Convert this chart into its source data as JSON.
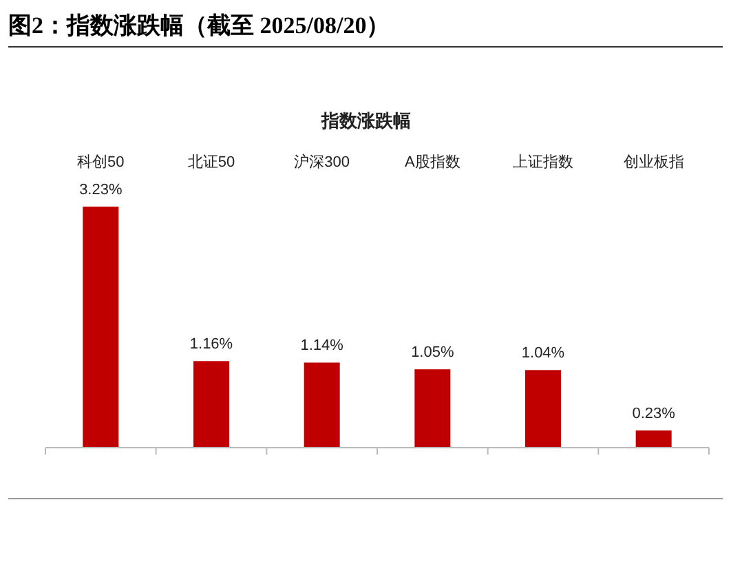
{
  "chart_data": {
    "type": "bar",
    "title": "图2：指数涨跌幅（截至 2025/08/20）",
    "subtitle": "指数涨跌幅",
    "categories": [
      "科创50",
      "北证50",
      "沪深300",
      "A股指数",
      "上证指数",
      "创业板指"
    ],
    "values": [
      3.23,
      1.16,
      1.14,
      1.05,
      1.04,
      0.23
    ],
    "value_labels": [
      "3.23%",
      "1.16%",
      "1.14%",
      "1.05%",
      "1.04%",
      "0.23%"
    ],
    "color": "#c00000"
  }
}
